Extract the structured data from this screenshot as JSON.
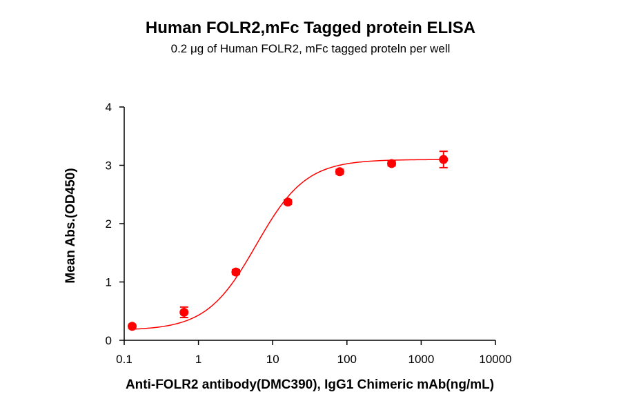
{
  "chart_data": {
    "type": "scatter",
    "title": "Human FOLR2,mFc Tagged protein ELISA",
    "subtitle": "0.2 μg of Human FOLR2, mFc tagged proteln per well",
    "xlabel": "Anti-FOLR2 antibody(DMC390), IgG1 Chimeric mAb(ng/mL)",
    "ylabel": "Mean Abs.(OD450)",
    "xscale": "log",
    "xlim": [
      0.1,
      10000
    ],
    "ylim": [
      0,
      4
    ],
    "xticks": [
      0.1,
      1,
      10,
      100,
      1000,
      10000
    ],
    "xtick_labels": [
      "0.1",
      "1",
      "10",
      "100",
      "1000",
      "10000"
    ],
    "yticks": [
      0,
      1,
      2,
      3,
      4
    ],
    "ytick_labels": [
      "0",
      "1",
      "2",
      "3",
      "4"
    ],
    "grid": false,
    "color": "#ff0000",
    "points": [
      {
        "x": 0.128,
        "y": 0.24,
        "err": 0.03
      },
      {
        "x": 0.64,
        "y": 0.48,
        "err": 0.09
      },
      {
        "x": 3.2,
        "y": 1.17,
        "err": 0.04
      },
      {
        "x": 16,
        "y": 2.37,
        "err": 0.04
      },
      {
        "x": 80,
        "y": 2.89,
        "err": 0.04
      },
      {
        "x": 400,
        "y": 3.03,
        "err": 0.04
      },
      {
        "x": 2000,
        "y": 3.1,
        "err": 0.14
      }
    ],
    "fit": {
      "model": "4PL",
      "bottom": 0.17,
      "top": 3.1,
      "ec50": 6.0,
      "hill": 1.3,
      "x_range": [
        0.128,
        2000
      ]
    }
  }
}
